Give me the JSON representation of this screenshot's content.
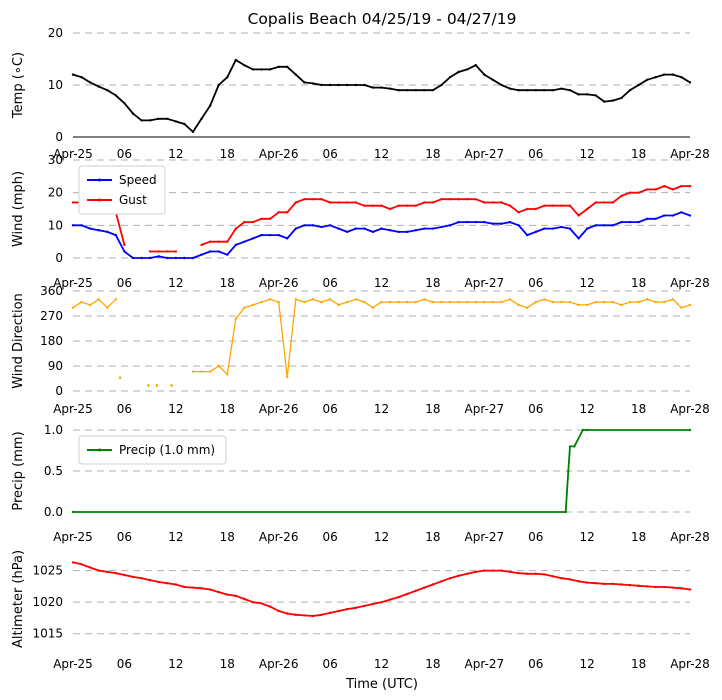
{
  "figure": {
    "title": "Copalis Beach 04/25/19 - 04/27/19",
    "xlabel": "Time (UTC)"
  },
  "x_ticks": [
    "Apr-25",
    "06",
    "12",
    "18",
    "Apr-26",
    "06",
    "12",
    "18",
    "Apr-27",
    "06",
    "12",
    "18",
    "Apr-28"
  ],
  "chart_data": [
    {
      "type": "line",
      "name": "temperature",
      "ylabel": "Temp (∘C)",
      "ylim": [
        0,
        20
      ],
      "yticks": [
        "0",
        "10",
        "20"
      ],
      "x_hours": [
        0,
        1,
        2,
        3,
        4,
        5,
        6,
        7,
        8,
        9,
        10,
        11,
        12,
        13,
        14,
        15,
        16,
        17,
        18,
        19,
        20,
        21,
        22,
        23,
        24,
        25,
        26,
        27,
        28,
        29,
        30,
        31,
        32,
        33,
        34,
        35,
        36,
        37,
        38,
        39,
        40,
        41,
        42,
        43,
        44,
        45,
        46,
        47,
        48,
        49,
        50,
        51,
        52,
        53,
        54,
        55,
        56,
        57,
        58,
        59,
        60,
        61,
        62,
        63,
        64,
        65,
        66,
        67,
        68,
        69,
        70,
        71,
        72
      ],
      "series": [
        {
          "name": "",
          "color": "#000000",
          "values": [
            12,
            11.5,
            10.5,
            9.7,
            9,
            8,
            6.5,
            4.5,
            3.2,
            3.2,
            3.5,
            3.5,
            3,
            2.5,
            1,
            3.5,
            6,
            10,
            11.5,
            14.8,
            13.8,
            13,
            13,
            13,
            13.5,
            13.5,
            12,
            10.5,
            10.3,
            10,
            10,
            10,
            10,
            10,
            10,
            9.5,
            9.5,
            9.3,
            9,
            9,
            9,
            9,
            9,
            10,
            11.5,
            12.5,
            13,
            13.8,
            12,
            11,
            10,
            9.3,
            9,
            9,
            9,
            9,
            9,
            9.3,
            9,
            8.2,
            8.2,
            8,
            6.8,
            7,
            7.5,
            9,
            10,
            11,
            11.5,
            12,
            12,
            11.5,
            10.5
          ]
        }
      ]
    },
    {
      "type": "line",
      "name": "wind",
      "ylabel": "Wind (mph)",
      "ylim": [
        0,
        30
      ],
      "yticks": [
        "0",
        "10",
        "20",
        "30"
      ],
      "legend": "top-left",
      "x_hours": [
        0,
        1,
        2,
        3,
        4,
        5,
        6,
        7,
        8,
        9,
        10,
        11,
        12,
        13,
        14,
        15,
        16,
        17,
        18,
        19,
        20,
        21,
        22,
        23,
        24,
        25,
        26,
        27,
        28,
        29,
        30,
        31,
        32,
        33,
        34,
        35,
        36,
        37,
        38,
        39,
        40,
        41,
        42,
        43,
        44,
        45,
        46,
        47,
        48,
        49,
        50,
        51,
        52,
        53,
        54,
        55,
        56,
        57,
        58,
        59,
        60,
        61,
        62,
        63,
        64,
        65,
        66,
        67,
        68,
        69,
        70,
        71,
        72
      ],
      "series": [
        {
          "name": "Speed",
          "color": "#0000ff",
          "values": [
            10,
            10,
            9,
            8.5,
            8,
            7,
            2,
            0,
            0,
            0,
            0.5,
            0,
            0,
            0,
            0,
            1,
            2,
            2,
            1,
            4,
            5,
            6,
            7,
            7,
            7,
            6,
            9,
            10,
            10,
            9.5,
            10,
            9,
            8,
            9,
            9,
            8,
            9,
            8.5,
            8,
            8,
            8.5,
            9,
            9,
            9.5,
            10,
            11,
            11,
            11,
            11,
            10.5,
            10.5,
            11,
            10,
            7,
            8,
            9,
            9,
            9.5,
            9,
            6,
            9,
            10,
            10,
            10,
            11,
            11,
            11,
            12,
            12,
            13,
            13,
            14,
            13
          ]
        },
        {
          "name": "Gust",
          "color": "#ff0000",
          "values": [
            17,
            17,
            16,
            15,
            15,
            14,
            4,
            null,
            null,
            2,
            2,
            2,
            2,
            null,
            null,
            4,
            5,
            5,
            5,
            9,
            11,
            11,
            12,
            12,
            14,
            14,
            17,
            18,
            18,
            18,
            17,
            17,
            17,
            17,
            16,
            16,
            16,
            15,
            16,
            16,
            16,
            17,
            17,
            18,
            18,
            18,
            18,
            18,
            17,
            17,
            17,
            16,
            14,
            15,
            15,
            16,
            16,
            16,
            16,
            13,
            15,
            17,
            17,
            17,
            19,
            20,
            20,
            21,
            21,
            22,
            21,
            22,
            22
          ]
        }
      ]
    },
    {
      "type": "line",
      "name": "wind_direction",
      "ylabel": "Wind Direction",
      "ylim": [
        0,
        360
      ],
      "yticks": [
        "0",
        "90",
        "180",
        "270",
        "360"
      ],
      "x_hours": [
        0,
        1,
        2,
        3,
        4,
        5,
        6,
        7,
        8,
        9,
        10,
        11,
        12,
        13,
        14,
        15,
        16,
        17,
        18,
        19,
        20,
        21,
        22,
        23,
        24,
        25,
        26,
        27,
        28,
        29,
        30,
        31,
        32,
        33,
        34,
        35,
        36,
        37,
        38,
        39,
        40,
        41,
        42,
        43,
        44,
        45,
        46,
        47,
        48,
        49,
        50,
        51,
        52,
        53,
        54,
        55,
        56,
        57,
        58,
        59,
        60,
        61,
        62,
        63,
        64,
        65,
        66,
        67,
        68,
        69,
        70,
        71,
        72
      ],
      "series": [
        {
          "name": "",
          "color": "#ffa500",
          "values": [
            300,
            320,
            310,
            330,
            300,
            330,
            null,
            null,
            null,
            null,
            null,
            null,
            null,
            null,
            70,
            70,
            70,
            90,
            60,
            260,
            300,
            310,
            320,
            330,
            320,
            50,
            330,
            320,
            330,
            320,
            330,
            310,
            320,
            330,
            320,
            300,
            320,
            320,
            320,
            320,
            320,
            330,
            320,
            320,
            320,
            320,
            320,
            320,
            320,
            320,
            320,
            330,
            310,
            300,
            320,
            330,
            320,
            320,
            320,
            310,
            310,
            320,
            320,
            320,
            310,
            320,
            320,
            330,
            320,
            320,
            330,
            300,
            310
          ]
        }
      ],
      "scatter_points": [
        {
          "x": 5.5,
          "y": 48
        },
        {
          "x": 8.8,
          "y": 20
        },
        {
          "x": 9.8,
          "y": 20
        },
        {
          "x": 11.5,
          "y": 20
        }
      ]
    },
    {
      "type": "line",
      "name": "precip",
      "ylabel": "Precip (mm)",
      "ylim": [
        0,
        1.0
      ],
      "yticks": [
        "0.0",
        "0.5",
        "1.0"
      ],
      "legend": "top-left",
      "x_hours": [
        0,
        57.5,
        57.8,
        58.0,
        58.5,
        59.5,
        60,
        72
      ],
      "series": [
        {
          "name": "Precip (1.0 mm)",
          "color": "#008000",
          "values": [
            0,
            0,
            0.5,
            0.8,
            0.8,
            1.0,
            1.0,
            1.0
          ]
        }
      ]
    },
    {
      "type": "line",
      "name": "altimeter",
      "ylabel": "Altimeter (hPa)",
      "ylim": [
        1014,
        1027
      ],
      "yticks": [
        "1015",
        "1020",
        "1025"
      ],
      "x_hours": [
        0,
        1,
        2,
        3,
        4,
        5,
        6,
        7,
        8,
        9,
        10,
        11,
        12,
        13,
        14,
        15,
        16,
        17,
        18,
        19,
        20,
        21,
        22,
        23,
        24,
        25,
        26,
        27,
        28,
        29,
        30,
        31,
        32,
        33,
        34,
        35,
        36,
        37,
        38,
        39,
        40,
        41,
        42,
        43,
        44,
        45,
        46,
        47,
        48,
        49,
        50,
        51,
        52,
        53,
        54,
        55,
        56,
        57,
        58,
        59,
        60,
        61,
        62,
        63,
        64,
        65,
        66,
        67,
        68,
        69,
        70,
        71,
        72
      ],
      "series": [
        {
          "name": "",
          "color": "#ff0000",
          "values": [
            1026.3,
            1026,
            1025.5,
            1025,
            1024.8,
            1024.6,
            1024.3,
            1024,
            1023.8,
            1023.5,
            1023.2,
            1023,
            1022.8,
            1022.4,
            1022.3,
            1022.2,
            1022,
            1021.6,
            1021.2,
            1021,
            1020.5,
            1020,
            1019.8,
            1019.3,
            1018.6,
            1018.2,
            1018.0,
            1017.9,
            1017.8,
            1018,
            1018.3,
            1018.6,
            1018.9,
            1019.1,
            1019.4,
            1019.7,
            1020,
            1020.4,
            1020.8,
            1021.3,
            1021.8,
            1022.3,
            1022.8,
            1023.3,
            1023.8,
            1024.2,
            1024.5,
            1024.8,
            1025,
            1025,
            1025,
            1024.8,
            1024.6,
            1024.5,
            1024.5,
            1024.4,
            1024.1,
            1023.8,
            1023.6,
            1023.3,
            1023.1,
            1023,
            1022.9,
            1022.9,
            1022.8,
            1022.7,
            1022.6,
            1022.5,
            1022.4,
            1022.4,
            1022.3,
            1022.2,
            1022.0
          ]
        }
      ]
    }
  ]
}
